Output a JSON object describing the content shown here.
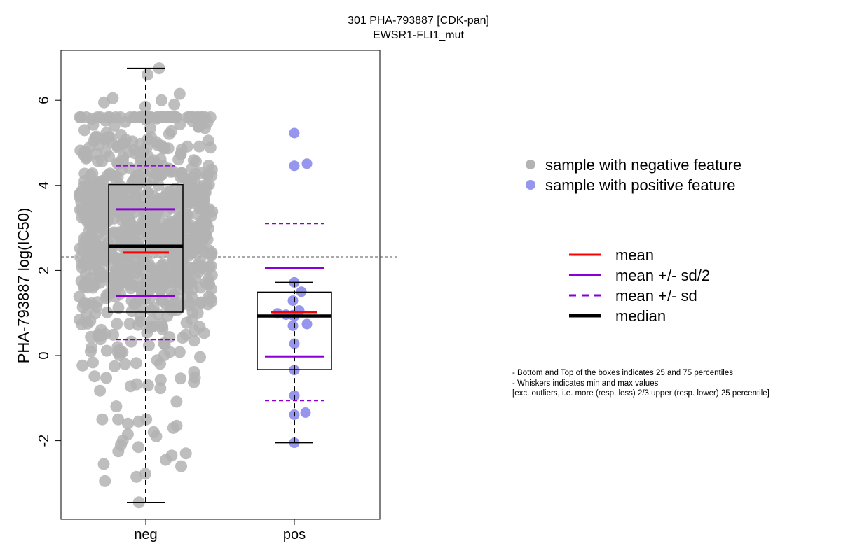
{
  "chart_data": {
    "type": "box-jitter",
    "title": "301 PHA-793887 [CDK-pan]",
    "subtitle": "EWSR1-FLI1_mut",
    "ylabel": "PHA-793887 log(IC50)",
    "categories": [
      "neg",
      "pos"
    ],
    "ylim": [
      -3.8,
      7.2
    ],
    "yticks": [
      -2,
      0,
      2,
      4,
      6
    ],
    "reference_line_y": 2.32,
    "colors": {
      "neg": "#b3b3b3",
      "pos": "#9696ee",
      "mean": "#ff0000",
      "sd": "#8a00d4",
      "median": "#000000"
    },
    "groups": [
      {
        "name": "neg",
        "min": -3.45,
        "q1": 1.02,
        "median": 2.57,
        "q3": 4.02,
        "max": 6.75,
        "mean": 2.42,
        "mean_minus_half_sd": 1.39,
        "mean_plus_half_sd": 3.44,
        "mean_minus_sd": 0.37,
        "mean_plus_sd": 4.46,
        "n_points": 900,
        "points_lower_tail": [
          -3.45,
          -2.95,
          -2.85,
          -2.78,
          -2.6,
          -2.55,
          -2.45,
          -2.35,
          -2.3,
          -2.25,
          -2.15,
          -2.1,
          -2.0,
          -1.9,
          -1.85,
          -1.8,
          -1.7,
          -1.65,
          -1.6,
          -1.55
        ],
        "points_upper_tail": [
          6.75,
          6.6,
          6.15,
          6.05,
          6.0,
          5.95,
          5.9,
          5.85
        ]
      },
      {
        "name": "pos",
        "min": -2.05,
        "q1": -0.33,
        "median": 0.93,
        "q3": 1.49,
        "max": 1.72,
        "mean": 1.02,
        "mean_minus_half_sd": -0.02,
        "mean_plus_half_sd": 2.06,
        "mean_minus_sd": -1.06,
        "mean_plus_sd": 3.1,
        "points": [
          5.23,
          4.51,
          4.46,
          1.72,
          1.5,
          1.29,
          1.06,
          0.99,
          0.96,
          0.95,
          0.93,
          0.74,
          0.7,
          0.28,
          -0.34,
          -0.94,
          -1.34,
          -1.39,
          -2.05
        ]
      }
    ],
    "legend": {
      "points": [
        {
          "label": "sample with negative feature",
          "color": "#b3b3b3"
        },
        {
          "label": "sample with positive feature",
          "color": "#9696ee"
        }
      ],
      "lines": [
        {
          "label": "mean",
          "color": "#ff0000",
          "style": "solid"
        },
        {
          "label": "mean +/- sd/2",
          "color": "#8a00d4",
          "style": "solid"
        },
        {
          "label": "mean +/- sd",
          "color": "#8a00d4",
          "style": "dashed"
        },
        {
          "label": "median",
          "color": "#000000",
          "style": "solid-thick"
        }
      ]
    },
    "notes": [
      "- Bottom and Top of the boxes indicates 25 and 75 percentiles",
      "- Whiskers indicates min and max values",
      "[exc. outliers, i.e. more (resp. less) 2/3 upper (resp. lower) 25 percentile]"
    ]
  }
}
